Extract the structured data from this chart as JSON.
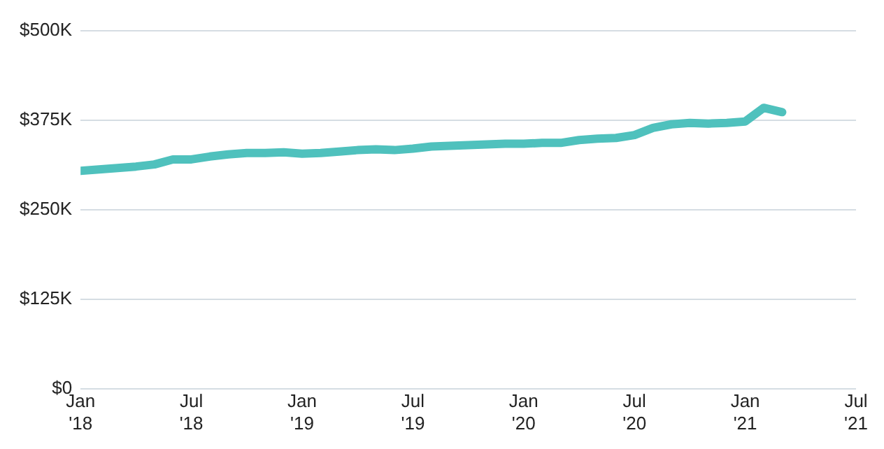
{
  "chart_data": {
    "type": "line",
    "x": [
      "2018-01",
      "2018-02",
      "2018-03",
      "2018-04",
      "2018-05",
      "2018-06",
      "2018-07",
      "2018-08",
      "2018-09",
      "2018-10",
      "2018-11",
      "2018-12",
      "2019-01",
      "2019-02",
      "2019-03",
      "2019-04",
      "2019-05",
      "2019-06",
      "2019-07",
      "2019-08",
      "2019-09",
      "2019-10",
      "2019-11",
      "2019-12",
      "2020-01",
      "2020-02",
      "2020-03",
      "2020-04",
      "2020-05",
      "2020-06",
      "2020-07",
      "2020-08",
      "2020-09",
      "2020-10",
      "2020-11",
      "2020-12",
      "2021-01",
      "2021-02",
      "2021-03"
    ],
    "series": [
      {
        "color": "#4fc1bd",
        "values": [
          304000,
          306000,
          308000,
          310000,
          313000,
          320000,
          320000,
          324000,
          327000,
          329000,
          329000,
          330000,
          328000,
          329000,
          331000,
          333000,
          334000,
          333000,
          335000,
          338000,
          339000,
          340000,
          341000,
          342000,
          342000,
          343000,
          343000,
          347000,
          349000,
          350000,
          354000,
          364000,
          369000,
          371000,
          370000,
          371000,
          373000,
          392000,
          386000
        ]
      }
    ],
    "xlim": [
      "2018-01",
      "2021-07"
    ],
    "xticks": [
      {
        "value": "2018-01",
        "label": "Jan '18"
      },
      {
        "value": "2018-07",
        "label": "Jul '18"
      },
      {
        "value": "2019-01",
        "label": "Jan '19"
      },
      {
        "value": "2019-07",
        "label": "Jul '19"
      },
      {
        "value": "2020-01",
        "label": "Jan '20"
      },
      {
        "value": "2020-07",
        "label": "Jul '20"
      },
      {
        "value": "2021-01",
        "label": "Jan '21"
      },
      {
        "value": "2021-07",
        "label": "Jul '21"
      }
    ],
    "ylim": [
      0,
      500000
    ],
    "yticks": [
      {
        "value": 0,
        "label": "$0"
      },
      {
        "value": 125000,
        "label": "$125K"
      },
      {
        "value": 250000,
        "label": "$250K"
      },
      {
        "value": 375000,
        "label": "$375K"
      },
      {
        "value": 500000,
        "label": "$500K"
      }
    ],
    "grid": "y",
    "legend": false,
    "marker": "none",
    "line_style": "solid"
  }
}
